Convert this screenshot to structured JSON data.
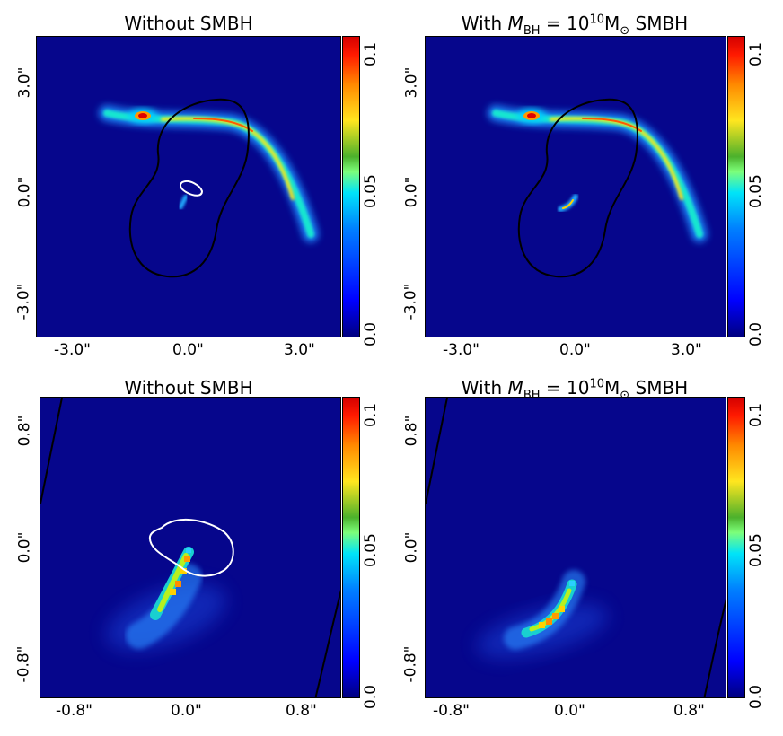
{
  "panels": [
    {
      "title_plain": "Without SMBH",
      "xticks": [
        "-3.0\"",
        "0.0\"",
        "3.0\""
      ],
      "yticks": [
        "3.0\"",
        "0.0\"",
        "-3.0\""
      ]
    },
    {
      "title_prefix": "With ",
      "title_var": "M",
      "title_var_sub": "BH",
      "title_eq": " = 10",
      "title_sup": "10",
      "title_unit": "M",
      "title_unit_sub": "⊙",
      "title_suffix": " SMBH",
      "xticks": [
        "-3.0\"",
        "0.0\"",
        "3.0\""
      ],
      "yticks": [
        "3.0\"",
        "0.0\"",
        "-3.0\""
      ]
    },
    {
      "title_plain": "Without SMBH",
      "xticks": [
        "-0.8\"",
        "0.0\"",
        "0.8\""
      ],
      "yticks": [
        "0.8\"",
        "0.0\"",
        "-0.8\""
      ]
    },
    {
      "title_prefix": "With ",
      "title_var": "M",
      "title_var_sub": "BH",
      "title_eq": " = 10",
      "title_sup": "10",
      "title_unit": "M",
      "title_unit_sub": "⊙",
      "title_suffix": " SMBH",
      "xticks": [
        "-0.8\"",
        "0.0\"",
        "0.8\""
      ],
      "yticks": [
        "0.8\"",
        "0.0\"",
        "-0.8\""
      ]
    }
  ],
  "colorbar": {
    "ticks": [
      "0.1",
      "0.05",
      "0.0"
    ],
    "min": 0.0,
    "max": 0.1,
    "colormap": "jet"
  },
  "colors": {
    "background": "#06068c",
    "critical_curve": "#000000",
    "caustic": "#ffffff"
  }
}
